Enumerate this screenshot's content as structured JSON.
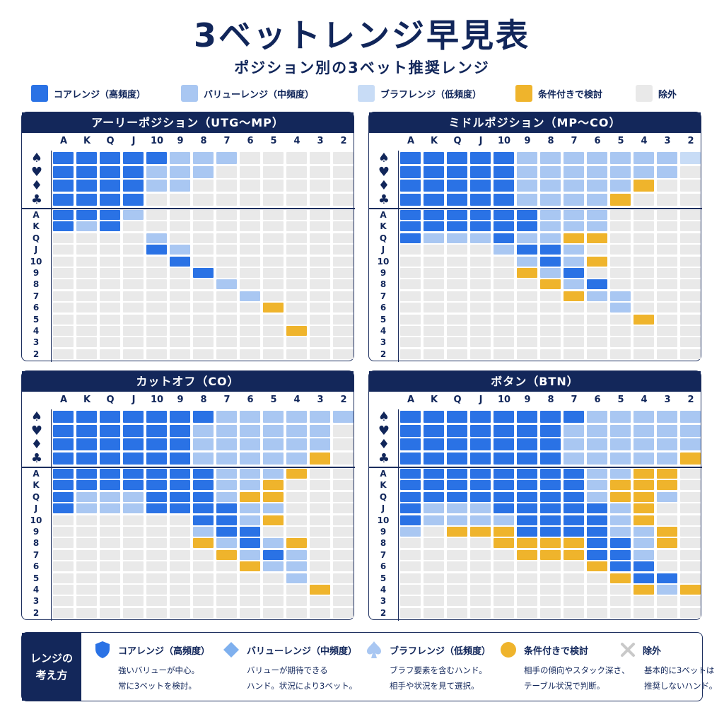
{
  "title": "3ベットレンジ早見表",
  "subtitle": "ポジション別の3ベット推奨レンジ",
  "colors": {
    "core": "#2a72e5",
    "value": "#a9c7f2",
    "bluff": "#c8dcf6",
    "conditional": "#efb42c",
    "excluded": "#e9e9e9",
    "navy": "#13275a"
  },
  "legend": [
    {
      "key": "core",
      "label": "コアレンジ（高頻度）"
    },
    {
      "key": "value",
      "label": "バリューレンジ（中頻度）"
    },
    {
      "key": "bluff",
      "label": "ブラフレンジ（低頻度）"
    },
    {
      "key": "conditional",
      "label": "条件付きで検討"
    },
    {
      "key": "excluded",
      "label": "除外"
    }
  ],
  "ranks": [
    "A",
    "K",
    "Q",
    "J",
    "10",
    "9",
    "8",
    "7",
    "6",
    "5",
    "4",
    "3",
    "2"
  ],
  "suits": [
    "♠",
    "♥",
    "♦",
    "♣"
  ],
  "panels": [
    {
      "title": "アーリーポジション（UTG〜MP）",
      "suit_rows": [
        "CCCCCVVV.....",
        "CCCCVVV......",
        "CCCCVV.......",
        "CCCC........."
      ],
      "pair_rows": [
        "CCCV.........",
        "CVC..........",
        "....V........",
        "....CV.......",
        ".....C.......",
        "......C......",
        ".......V.....",
        "........V....",
        ".........Y...",
        ".............",
        "..........Y..",
        ".............",
        "............."
      ]
    },
    {
      "title": "ミドルポジション（MP〜CO）",
      "suit_rows": [
        "CCCCCVVVVVVVB",
        "CCCCCVVVVVVV.",
        "CCCCCVVVVVY..",
        "CCCCCVVVVY..."
      ],
      "pair_rows": [
        "CCCCCCVVV....",
        "CCCCCCVVV....",
        "CVVVCVVYY....",
        "....VCCV.....",
        ".....VCVY....",
        ".....YVC.....",
        "......YVC....",
        ".......YVV...",
        ".........V...",
        "..........Y..",
        ".............",
        ".............",
        "............."
      ]
    },
    {
      "title": "カットオフ（CO）",
      "suit_rows": [
        "CCCCCCCVVVVVV",
        "CCCCCCVVVVVV.",
        "CCCCCCVVVVVV.",
        "CCCCCCVVVVVY."
      ],
      "pair_rows": [
        "CCCCCCCVVVY..",
        "CCCCCCCVVY...",
        "CVVVCCCVYY...",
        "CVVVCCCCVV...",
        "......CCVY...",
        "......VCC....",
        "......YVCVY..",
        ".......YVCV..",
        "........YVV..",
        "..........V..",
        "...........Y.",
        ".............",
        "............."
      ]
    },
    {
      "title": "ボタン（BTN）",
      "suit_rows": [
        "CCCCCCCCVVVVV",
        "CCCCCCCVVVVVV",
        "CCCCCCCVVVVVV",
        "CCCCCCCVVVVVY"
      ],
      "pair_rows": [
        "CCCCCCCCVVYY.",
        "CCCCCCCCVYYY.",
        "CCCCCCCCVYYV.",
        "CVVVCCCCCVY..",
        "CVVVVCCCCVY..",
        "V.YYYCCCCVVY.",
        "....YYYYCCVY.",
        ".....YYYCCV..",
        "........YCC..",
        ".........YCC.",
        "..........YVY",
        ".............",
        "............."
      ]
    }
  ],
  "footer": {
    "title_line1": "レンジの",
    "title_line2": "考え方",
    "items": [
      {
        "icon": "shield-icon",
        "name": "コアレンジ（高頻度）",
        "desc1": "強いバリューが中心。",
        "desc2": "常に3ベットを検討。"
      },
      {
        "icon": "diamond-icon",
        "name": "バリューレンジ（中頻度）",
        "desc1": "バリューが期待できる",
        "desc2": "ハンド。状況により3ベット。"
      },
      {
        "icon": "spade-icon",
        "name": "ブラフレンジ（低頻度）",
        "desc1": "ブラフ要素を含むハンド。",
        "desc2": "相手や状況を見て選択。"
      },
      {
        "icon": "circle-icon",
        "name": "条件付きで検討",
        "desc1": "相手の傾向やスタック深さ、",
        "desc2": "テーブル状況で判断。"
      },
      {
        "icon": "cross-icon",
        "name": "除外",
        "desc1": "基本的に3ベットは",
        "desc2": "推奨しないハンド。"
      }
    ]
  }
}
